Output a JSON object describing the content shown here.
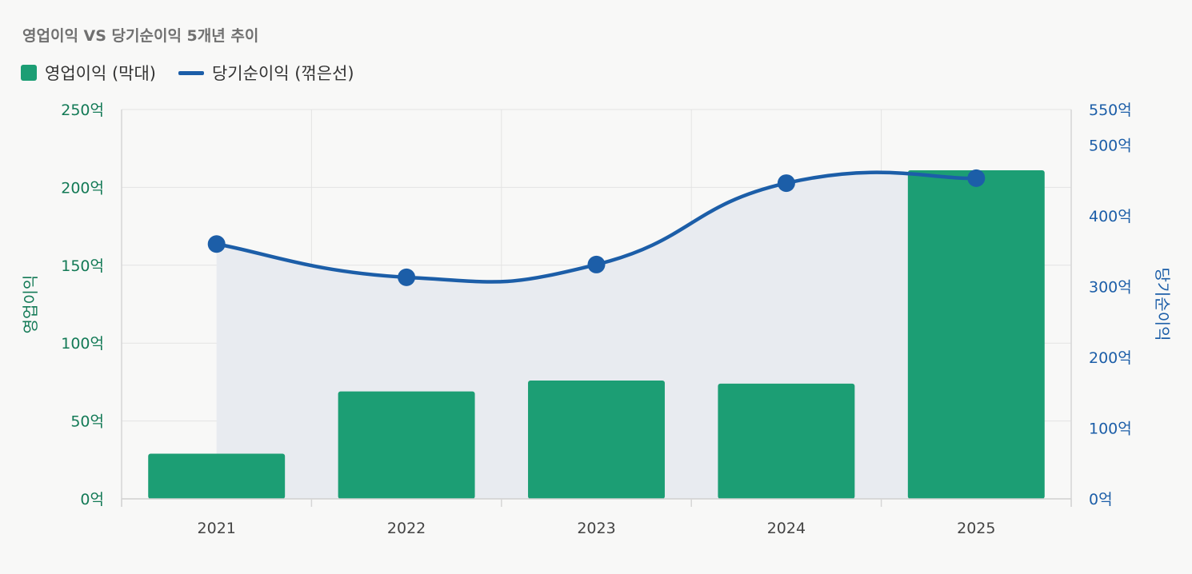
{
  "chart_data": {
    "type": "bar",
    "title": "영업이익 VS 당기순이익 5개년 추이",
    "categories": [
      "2021",
      "2022",
      "2023",
      "2024",
      "2025"
    ],
    "series": [
      {
        "name": "영업이익 (막대)",
        "type": "bar",
        "axis": "left",
        "color": "#1c9e74",
        "values": [
          29,
          69,
          76,
          74,
          211
        ]
      },
      {
        "name": "당기순이익 (꺾은선)",
        "type": "line",
        "axis": "right",
        "color": "#1c5ea8",
        "area_fill": "#e8ebf0",
        "smooth": true,
        "values": [
          360,
          313,
          331,
          446,
          453
        ]
      }
    ],
    "y_left": {
      "label": "영업이익",
      "range": [
        0,
        250
      ],
      "ticks": [
        0,
        50,
        100,
        150,
        200,
        250
      ],
      "tick_labels": [
        "0억",
        "50억",
        "100억",
        "150억",
        "200억",
        "250억"
      ],
      "color": "#137a56"
    },
    "y_right": {
      "label": "당기순이익",
      "range": [
        0,
        550
      ],
      "ticks": [
        0,
        100,
        200,
        300,
        400,
        500,
        550
      ],
      "tick_labels": [
        "0억",
        "100억",
        "200억",
        "300억",
        "400억",
        "500억",
        "550억"
      ],
      "color": "#1c5ea8"
    },
    "grid": true,
    "legend_position": "top-left"
  }
}
